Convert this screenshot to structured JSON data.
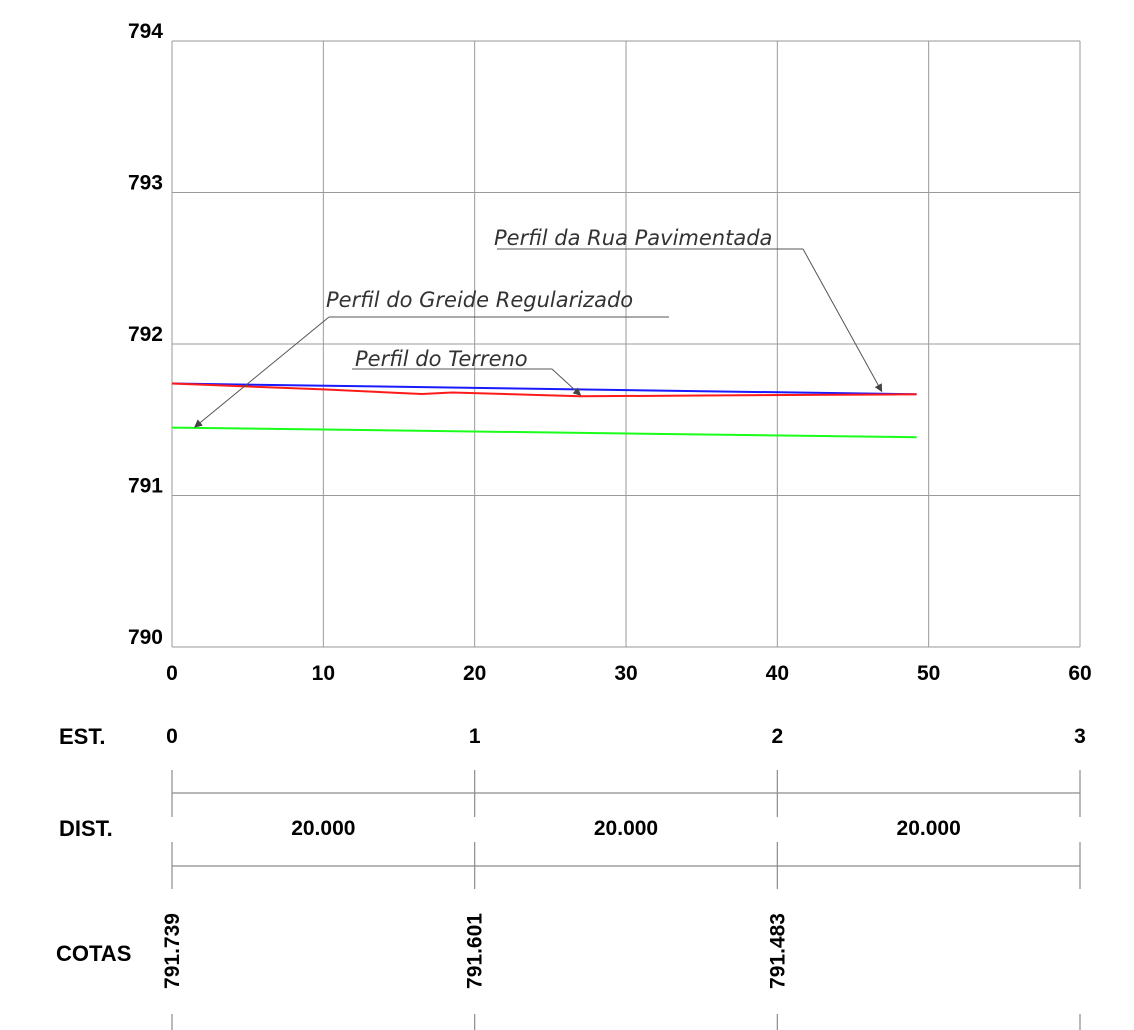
{
  "chart_data": {
    "type": "line",
    "title": "",
    "xlabel": "",
    "ylabel": "",
    "xlim": [
      0,
      60
    ],
    "ylim": [
      790,
      794
    ],
    "x_ticks": [
      "0",
      "10",
      "20",
      "30",
      "40",
      "50",
      "60"
    ],
    "y_ticks": [
      "790",
      "791",
      "792",
      "793",
      "794"
    ],
    "grid": true,
    "series": [
      {
        "name": "Perfil da Rua Pavimentada",
        "color": "#1a1aff",
        "points": [
          [
            0,
            791.739
          ],
          [
            49.2,
            791.668
          ]
        ]
      },
      {
        "name": "Perfil do Terreno",
        "color": "#ff1a1a",
        "points": [
          [
            0,
            791.739
          ],
          [
            10,
            791.7
          ],
          [
            16.5,
            791.67
          ],
          [
            18.5,
            791.68
          ],
          [
            27,
            791.655
          ],
          [
            35,
            791.66
          ],
          [
            49.2,
            791.668
          ]
        ]
      },
      {
        "name": "Perfil do Greide Regularizado",
        "color": "#1aff1a",
        "points": [
          [
            0,
            791.448
          ],
          [
            49.2,
            791.385
          ]
        ]
      }
    ],
    "annotations": [
      {
        "text": "Perfil da Rua Pavimentada",
        "target": [
          46.9,
          791.68
        ]
      },
      {
        "text": "Perfil do Greide Regularizado",
        "target": [
          1.5,
          791.445
        ]
      },
      {
        "text": "Perfil do Terreno",
        "target": [
          27,
          791.655
        ]
      }
    ]
  },
  "table": {
    "labels": {
      "est": "EST.",
      "dist": "DIST.",
      "cotas": "COTAS"
    },
    "stations": [
      {
        "est": "0",
        "x": 0,
        "cota": "791.739"
      },
      {
        "est": "1",
        "x": 20,
        "cota": "791.601"
      },
      {
        "est": "2",
        "x": 40,
        "cota": "791.483"
      },
      {
        "est": "3",
        "x": 60,
        "cota": ""
      }
    ],
    "distances": [
      "20.000",
      "20.000",
      "20.000"
    ]
  }
}
